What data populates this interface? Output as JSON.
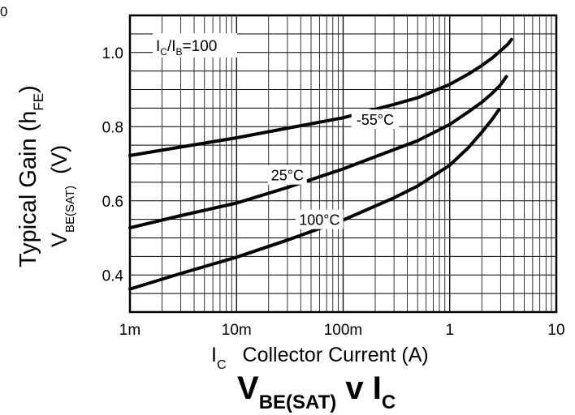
{
  "chart_data": {
    "type": "line",
    "corner_mark": "0",
    "title": {
      "main": "V",
      "sub": "BE(SAT)",
      "mid": " v I",
      "sub2": "C"
    },
    "xlabel": {
      "main": "I",
      "sub": "C",
      "rest": "Collector Current (A)"
    },
    "ylabel_outer": {
      "main": "Typical Gain (h",
      "sub": "FE",
      "rest": ")"
    },
    "ylabel_inner": {
      "main": "V",
      "sub": "BE(SAT)",
      "rest": "(V)"
    },
    "condition": {
      "i1": "I",
      "s1": "C",
      "slash": "/I",
      "s2": "B",
      "rest": "=100"
    },
    "x_scale": "log",
    "xlim": [
      0.001,
      10
    ],
    "ylim": [
      0.3,
      1.1
    ],
    "x_ticks": [
      0.001,
      0.01,
      0.1,
      1,
      10
    ],
    "x_tick_labels": [
      "1m",
      "10m",
      "100m",
      "1",
      "10"
    ],
    "y_ticks": [
      0.4,
      0.6,
      0.8,
      1.0
    ],
    "y_tick_labels": [
      "0.4",
      "0.6",
      "0.8",
      "1.0"
    ],
    "grid": true,
    "series": [
      {
        "name": "-55°C",
        "x": [
          0.001,
          0.003,
          0.01,
          0.03,
          0.1,
          0.3,
          0.5,
          1,
          1.5,
          2,
          2.5,
          3,
          3.5,
          3.8
        ],
        "y": [
          0.722,
          0.745,
          0.77,
          0.796,
          0.824,
          0.86,
          0.878,
          0.914,
          0.942,
          0.965,
          0.985,
          1.005,
          1.022,
          1.035
        ]
      },
      {
        "name": "25°C",
        "x": [
          0.001,
          0.003,
          0.01,
          0.03,
          0.1,
          0.3,
          0.5,
          1,
          1.5,
          2,
          2.5,
          3,
          3.4
        ],
        "y": [
          0.527,
          0.56,
          0.594,
          0.636,
          0.686,
          0.738,
          0.762,
          0.806,
          0.84,
          0.866,
          0.89,
          0.913,
          0.935
        ]
      },
      {
        "name": "100°C",
        "x": [
          0.001,
          0.003,
          0.01,
          0.03,
          0.1,
          0.3,
          0.5,
          1,
          1.5,
          2,
          2.5,
          2.9
        ],
        "y": [
          0.362,
          0.404,
          0.448,
          0.494,
          0.548,
          0.608,
          0.64,
          0.696,
          0.744,
          0.785,
          0.82,
          0.846
        ]
      }
    ],
    "label_positions": [
      [
        0.2,
        0.82
      ],
      [
        0.03,
        0.67
      ],
      [
        0.06,
        0.55
      ]
    ]
  }
}
